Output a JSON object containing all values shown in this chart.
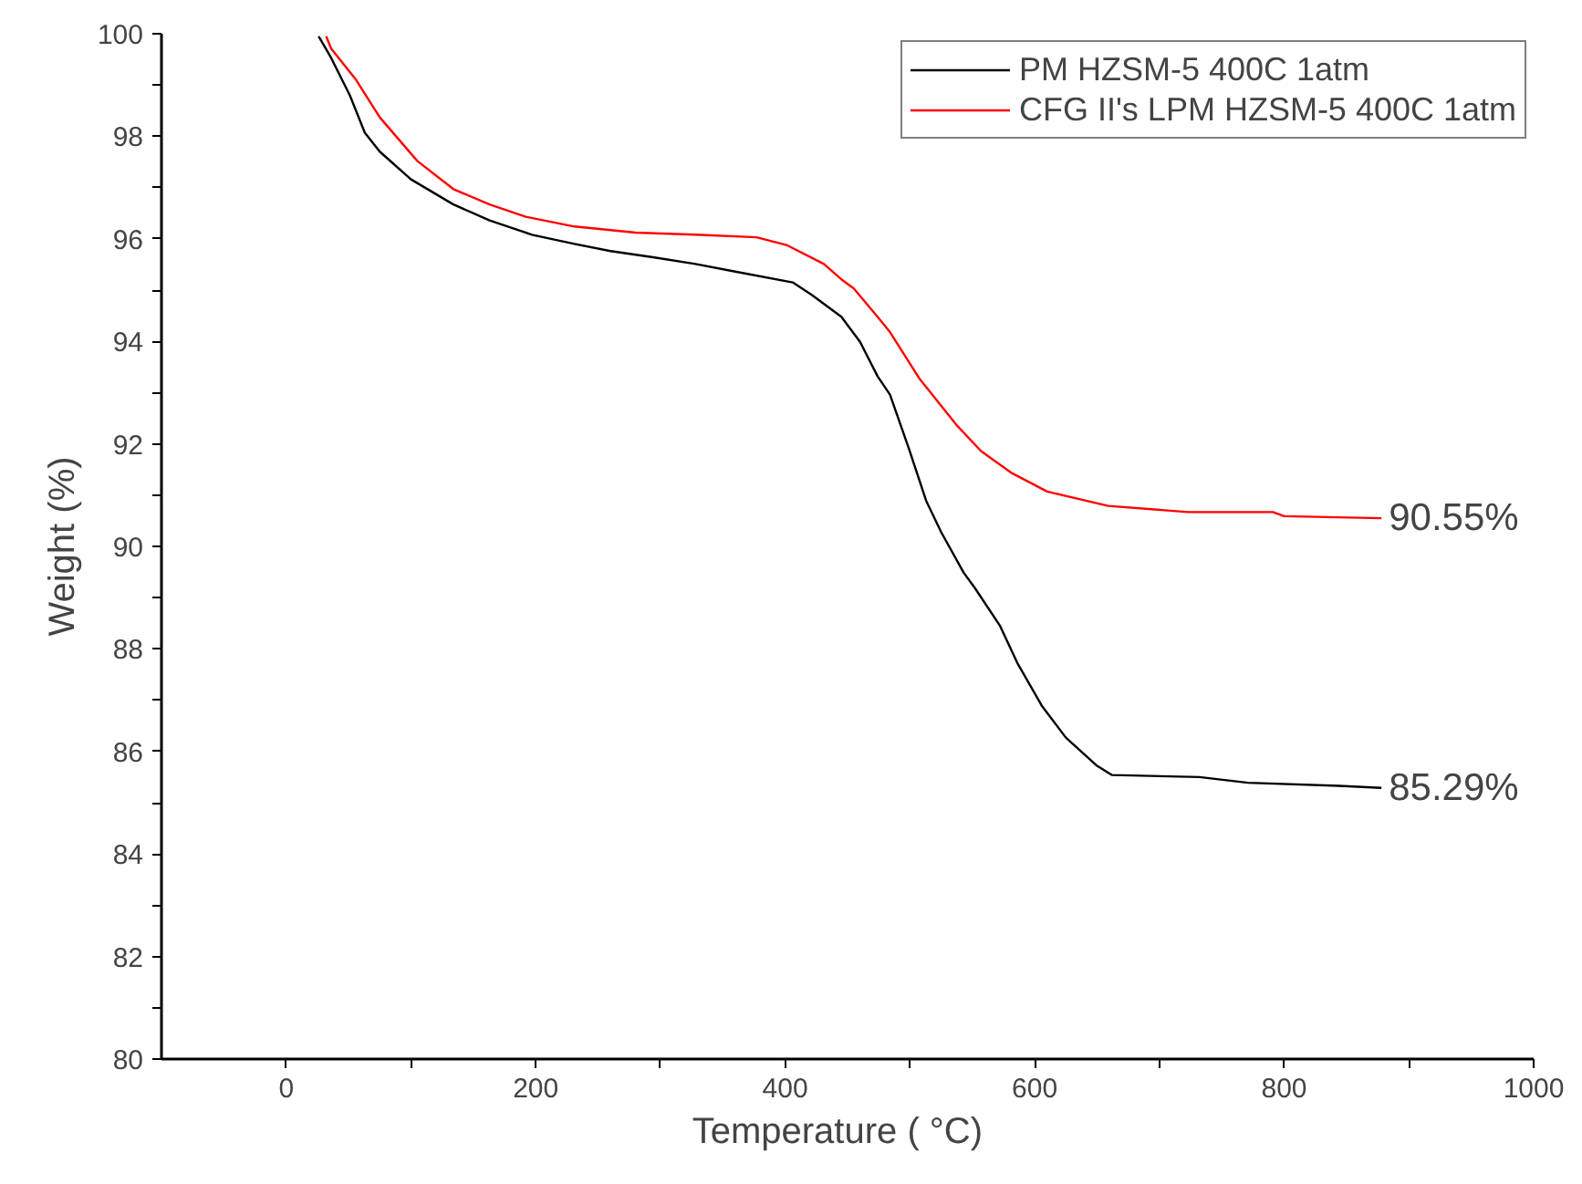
{
  "chart_data": {
    "type": "line",
    "xlabel": "Temperature (   °C)",
    "ylabel": "Weight (%)",
    "xlim": [
      -100,
      1000
    ],
    "ylim": [
      80,
      100
    ],
    "xticks": [
      0,
      {
        "value": 100,
        "label": null
      },
      200,
      {
        "value": 300,
        "label": null
      },
      400,
      {
        "value": 500,
        "label": null
      },
      600,
      {
        "value": 700,
        "label": null
      },
      800,
      {
        "value": 900,
        "label": null
      },
      1000
    ],
    "yticks": [
      80,
      {
        "value": 81,
        "label": null
      },
      82,
      {
        "value": 83,
        "label": null
      },
      84,
      {
        "value": 85,
        "label": null
      },
      86,
      {
        "value": 87,
        "label": null
      },
      88,
      {
        "value": 89,
        "label": null
      },
      90,
      {
        "value": 91,
        "label": null
      },
      92,
      {
        "value": 93,
        "label": null
      },
      94,
      {
        "value": 95,
        "label": null
      },
      96,
      {
        "value": 97,
        "label": null
      },
      98,
      {
        "value": 99,
        "label": null
      },
      100
    ],
    "grid": false,
    "legend": "top right",
    "marker": "none",
    "line_style": "solid",
    "series": [
      {
        "name": "PM HZSM-5 400C 1atm",
        "color": "#000000",
        "x": [
          26,
          36,
          51,
          63,
          75,
          100,
          134,
          163,
          197,
          231,
          260,
          294,
          328,
          358,
          406,
          421,
          445,
          460,
          474,
          484,
          499,
          513,
          525,
          543,
          552,
          572,
          586,
          606,
          625,
          650,
          662,
          732,
          771,
          844,
          878
        ],
        "values": [
          99.95,
          99.53,
          98.8,
          98.07,
          97.7,
          97.16,
          96.67,
          96.36,
          96.08,
          95.9,
          95.76,
          95.64,
          95.51,
          95.37,
          95.15,
          94.91,
          94.48,
          93.99,
          93.32,
          92.96,
          91.92,
          90.89,
          90.28,
          89.49,
          89.19,
          88.46,
          87.73,
          86.88,
          86.27,
          85.72,
          85.54,
          85.5,
          85.39,
          85.33,
          85.29
        ]
      },
      {
        "name": "CFG II's LPM HZSM-5 400C 1atm",
        "color": "#ff0000",
        "x": [
          32,
          36,
          56,
          75,
          105,
          134,
          163,
          192,
          231,
          280,
          328,
          377,
          401,
          431,
          445,
          455,
          474,
          484,
          508,
          538,
          557,
          581,
          610,
          659,
          723,
          791,
          800,
          878
        ],
        "values": [
          99.95,
          99.71,
          99.1,
          98.37,
          97.52,
          96.97,
          96.67,
          96.43,
          96.24,
          96.12,
          96.08,
          96.03,
          95.88,
          95.51,
          95.21,
          95.03,
          94.48,
          94.18,
          93.26,
          92.35,
          91.86,
          91.44,
          91.07,
          90.79,
          90.67,
          90.67,
          90.59,
          90.55
        ]
      }
    ],
    "annotations": [
      {
        "text": "90.55%",
        "x": 878,
        "y": 90.55
      },
      {
        "text": "85.29%",
        "x": 878,
        "y": 85.29
      }
    ]
  }
}
